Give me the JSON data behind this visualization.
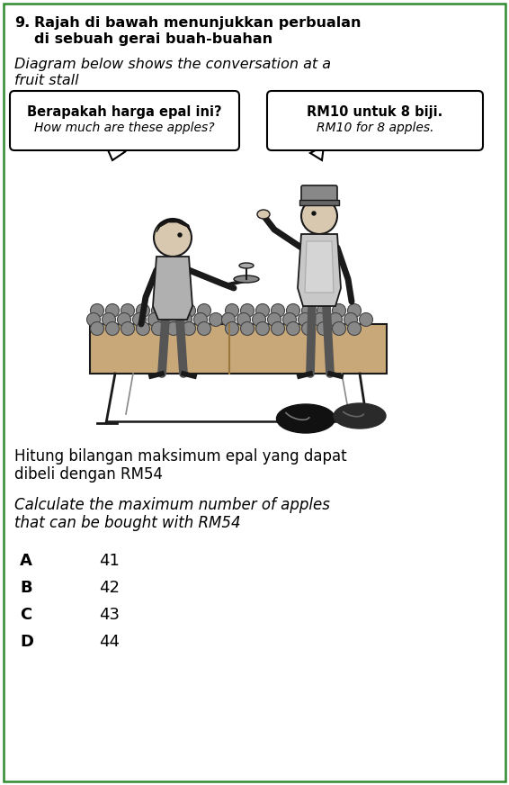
{
  "question_number": "9.",
  "title_malay_1": "Rajah di bawah menunjukkan perbualan",
  "title_malay_2": "di sebuah gerai buah-buahan",
  "title_english_1": "Diagram below shows the conversation at a",
  "title_english_2": "fruit stall",
  "bubble1_bold": "Berapakah harga epal ini?",
  "bubble1_italic": "How much are these apples?",
  "bubble2_bold": "RM10 untuk 8 biji.",
  "bubble2_italic": "RM10 for 8 apples.",
  "question_malay_1": "Hitung bilangan maksimum epal yang dapat",
  "question_malay_2": "dibeli dengan RM54",
  "question_english_1": "Calculate the maximum number of apples",
  "question_english_2": "that can be bought with RM54",
  "options": [
    "A",
    "B",
    "C",
    "D"
  ],
  "answers": [
    "41",
    "42",
    "43",
    "44"
  ],
  "bg_color": "#ffffff",
  "text_color": "#000000",
  "border_color": "#2e8b2e",
  "fig_width": 5.66,
  "fig_height": 8.72,
  "dpi": 100
}
